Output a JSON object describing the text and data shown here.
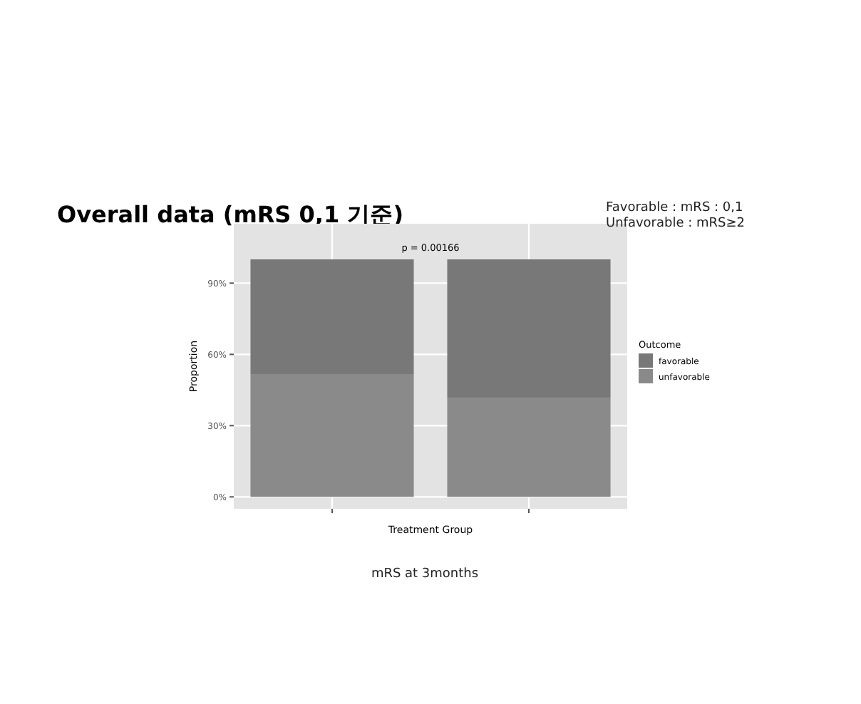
{
  "chart_data": {
    "type": "bar",
    "title": "Overall data (mRS 0,1 기준)",
    "categories": [
      null,
      null
    ],
    "stacked": true,
    "series": [
      {
        "name": "unfavorable",
        "color": "#8a8a8a",
        "values": [
          51.7,
          41.6
        ]
      },
      {
        "name": "favorable",
        "color": "#787878",
        "values": [
          48.3,
          58.4
        ]
      }
    ],
    "xlabel": "Treatment Group",
    "ylabel": "Proportion",
    "legend_title": "Outcome",
    "ylim": [
      -5,
      115
    ],
    "yticks": [
      {
        "value": 0,
        "label": "0%"
      },
      {
        "value": 30,
        "label": "30%"
      },
      {
        "value": 60,
        "label": "60%"
      },
      {
        "value": 90,
        "label": "90%"
      }
    ],
    "grid": true,
    "legend": "right",
    "annotations": [
      "p = 0.00166",
      "Favorable : mRS : 0,1",
      "Unfavorable : mRS≥2",
      "mRS at 3months"
    ]
  }
}
